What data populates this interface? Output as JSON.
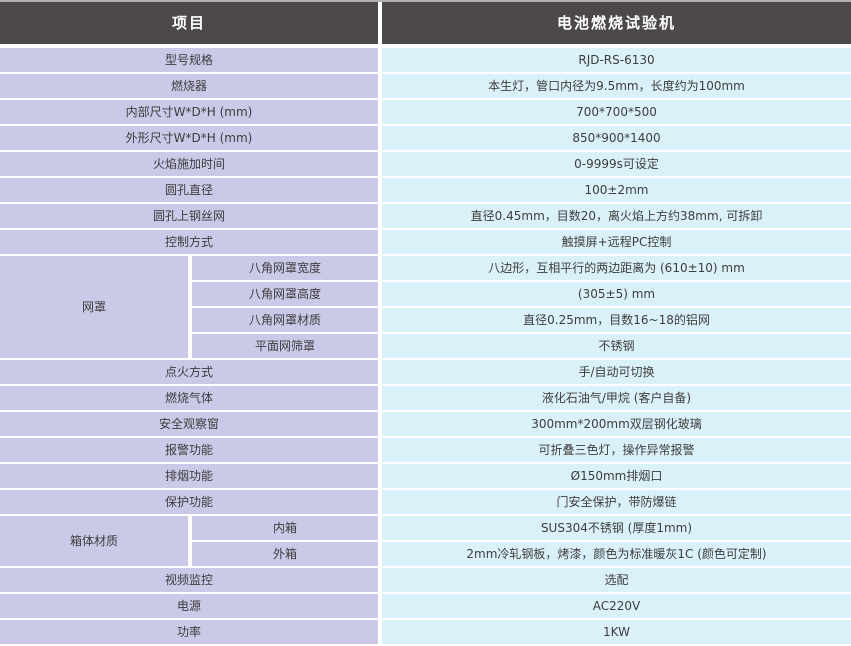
{
  "header": {
    "col1": "项目",
    "col2": "电池燃烧试验机"
  },
  "colors": {
    "header_bg": "#4d494a",
    "header_text": "#ffffff",
    "label_bg": "#cac9e8",
    "value_bg": "#dbf1fa",
    "body_text": "#3d3d3d",
    "top_border": "#b3b0b1"
  },
  "sections": {
    "top": [
      {
        "label": "型号规格",
        "value": "RJD-RS-6130"
      },
      {
        "label": "燃烧器",
        "value": "本生灯，管口内径为9.5mm，长度约为100mm"
      },
      {
        "label": "内部尺寸W*D*H (mm)",
        "value": "700*700*500"
      },
      {
        "label": "外形尺寸W*D*H (mm)",
        "value": "850*900*1400"
      },
      {
        "label": "火焰施加时间",
        "value": "0-9999s可设定"
      },
      {
        "label": "圆孔直径",
        "value": "100±2mm"
      },
      {
        "label": "圆孔上钢丝网",
        "value": "直径0.45mm，目数20，离火焰上方约38mm, 可拆卸"
      },
      {
        "label": "控制方式",
        "value": "触摸屏+远程PC控制"
      }
    ],
    "mid": [
      {
        "label": "点火方式",
        "value": "手/自动可切换"
      },
      {
        "label": "燃烧气体",
        "value": "液化石油气/甲烷 (客户自备)"
      },
      {
        "label": "安全观察窗",
        "value": "300mm*200mm双层钢化玻璃"
      },
      {
        "label": "报警功能",
        "value": "可折叠三色灯，操作异常报警"
      },
      {
        "label": "排烟功能",
        "value": "Ø150mm排烟口"
      },
      {
        "label": "保护功能",
        "value": "门安全保护，带防爆链"
      }
    ],
    "bottom": [
      {
        "label": "视频监控",
        "value": "选配"
      },
      {
        "label": "电源",
        "value": "AC220V"
      },
      {
        "label": "功率",
        "value": "1KW"
      }
    ]
  },
  "groups": {
    "wangzhao": {
      "label": "网罩",
      "rows": [
        {
          "label": "八角网罩宽度",
          "value": "八边形，互相平行的两边距离为 (610±10) mm"
        },
        {
          "label": "八角网罩高度",
          "value": "(305±5) mm"
        },
        {
          "label": "八角网罩材质",
          "value": "直径0.25mm，目数16~18的铝网"
        },
        {
          "label": "平面网筛罩",
          "value": "不锈钢"
        }
      ]
    },
    "xiangti": {
      "label": "箱体材质",
      "rows": [
        {
          "label": "内箱",
          "value": "SUS304不锈钢 (厚度1mm)"
        },
        {
          "label": "外箱",
          "value": "2mm冷轧钢板，烤漆，颜色为标准暖灰1C (颜色可定制)"
        }
      ]
    }
  }
}
